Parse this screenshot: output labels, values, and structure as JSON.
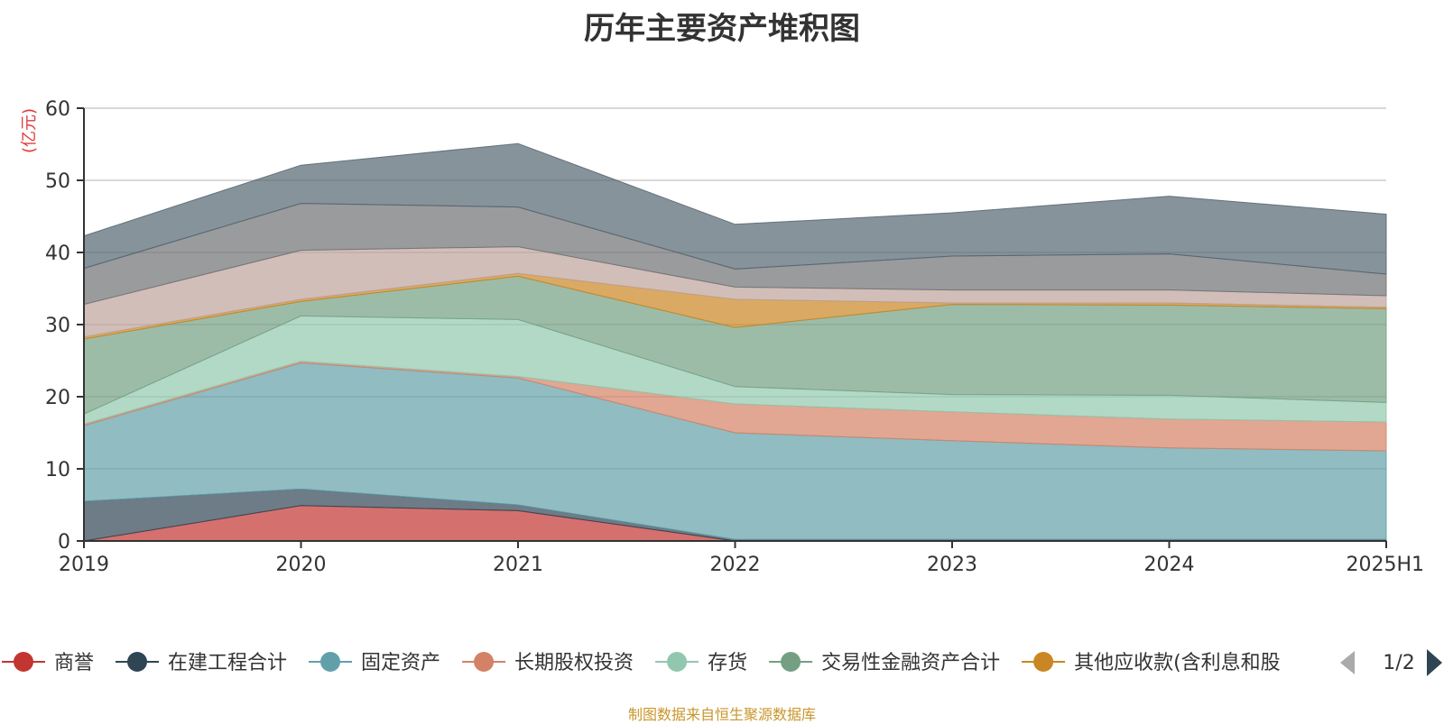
{
  "chart_data": {
    "type": "area",
    "stacked": true,
    "title": "历年主要资产堆积图",
    "ylabel": "(亿元)",
    "categories": [
      "2019",
      "2020",
      "2021",
      "2022",
      "2023",
      "2024",
      "2025H1"
    ],
    "ylim": [
      0,
      60
    ],
    "yticks": [
      0,
      10,
      20,
      30,
      40,
      50,
      60
    ],
    "grid": true,
    "legend_position": "bottom",
    "legend_page": "1/2",
    "series": [
      {
        "name": "商誉",
        "color": "#c23531",
        "values": [
          0,
          4.9,
          4.2,
          0,
          0,
          0,
          0
        ]
      },
      {
        "name": "在建工程合计",
        "color": "#2f4554",
        "values": [
          5.5,
          2.3,
          0.8,
          0.2,
          0.2,
          0.2,
          0.2
        ]
      },
      {
        "name": "固定资产",
        "color": "#61a0a8",
        "values": [
          10.5,
          17.5,
          17.6,
          14.8,
          13.7,
          12.7,
          12.3
        ]
      },
      {
        "name": "长期股权投资",
        "color": "#d48265",
        "values": [
          0.2,
          0.2,
          0.2,
          4.0,
          4.0,
          4.0,
          4.0
        ]
      },
      {
        "name": "存货",
        "color": "#91c7ae",
        "values": [
          1.4,
          6.3,
          7.9,
          2.4,
          2.4,
          3.3,
          2.7
        ]
      },
      {
        "name": "交易性金融资产合计",
        "color": "#749f83",
        "values": [
          10.4,
          2.0,
          6.0,
          8.2,
          12.5,
          12.5,
          13.0
        ]
      },
      {
        "name": "其他应收款(含利息和股",
        "color": "#ca8622",
        "values": [
          0.3,
          0.3,
          0.4,
          3.9,
          0.2,
          0.3,
          0.2
        ]
      },
      {
        "name": "",
        "color": "#bda29a",
        "values": [
          4.5,
          6.8,
          3.7,
          1.7,
          1.8,
          1.8,
          1.6
        ]
      },
      {
        "name": "",
        "color": "#6e7074",
        "values": [
          5.0,
          6.5,
          5.5,
          2.5,
          4.7,
          5.0,
          3.0
        ]
      },
      {
        "name": "",
        "color": "#546570",
        "values": [
          4.5,
          5.3,
          8.8,
          6.2,
          6.0,
          8.0,
          8.3
        ]
      }
    ]
  },
  "source_note": "制图数据来自恒生聚源数据库"
}
